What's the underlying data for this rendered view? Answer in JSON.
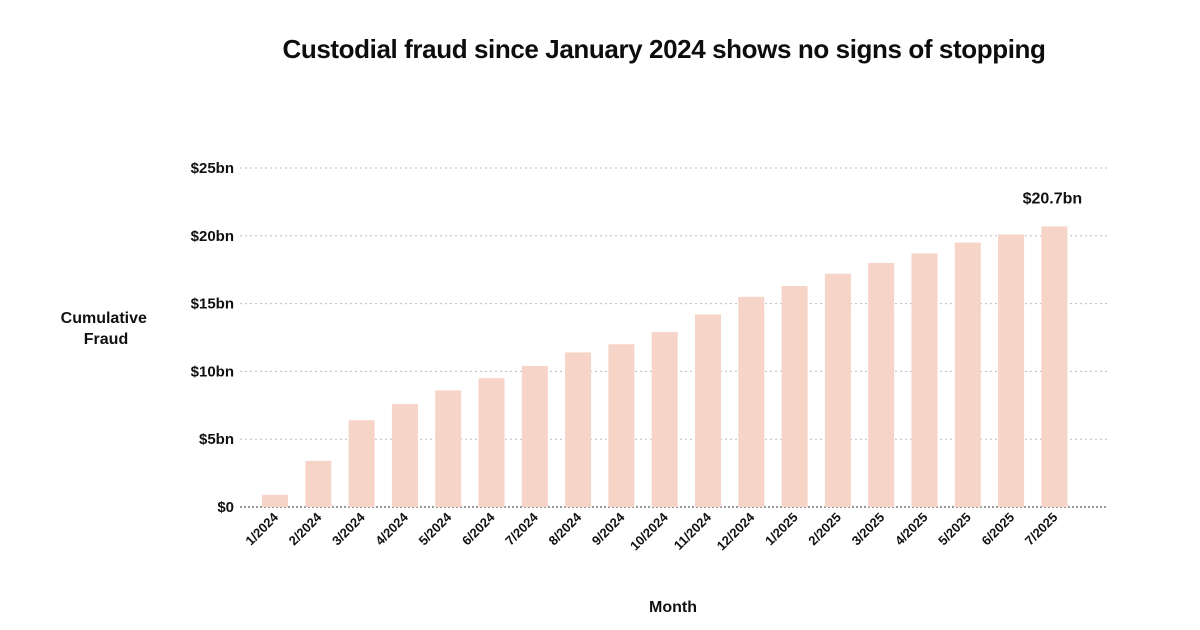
{
  "chart_data": {
    "type": "bar",
    "title": "Custodial fraud since January 2024 shows no signs of stopping",
    "xlabel": "Month",
    "ylabel": [
      "Cumulative",
      "Fraud"
    ],
    "categories": [
      "1/2024",
      "2/2024",
      "3/2024",
      "4/2024",
      "5/2024",
      "6/2024",
      "7/2024",
      "8/2024",
      "9/2024",
      "10/2024",
      "11/2024",
      "12/2024",
      "1/2025",
      "2/2025",
      "3/2025",
      "4/2025",
      "5/2025",
      "6/2025",
      "7/2025"
    ],
    "values": [
      0.9,
      3.4,
      6.4,
      7.6,
      8.6,
      9.5,
      10.4,
      11.4,
      12.0,
      12.9,
      14.2,
      15.5,
      16.3,
      17.2,
      18.0,
      18.7,
      19.5,
      20.1,
      20.7
    ],
    "ylim": [
      0,
      25
    ],
    "yticks": [
      0,
      5,
      10,
      15,
      20,
      25
    ],
    "ytick_labels": [
      "$0",
      "$5bn",
      "$10bn",
      "$15bn",
      "$20bn",
      "$25bn"
    ],
    "grid": true,
    "legend": "none",
    "annotations": [
      {
        "category": "7/2025",
        "text": "$20.7bn"
      }
    ],
    "bar_color": "#f7d4c8"
  }
}
